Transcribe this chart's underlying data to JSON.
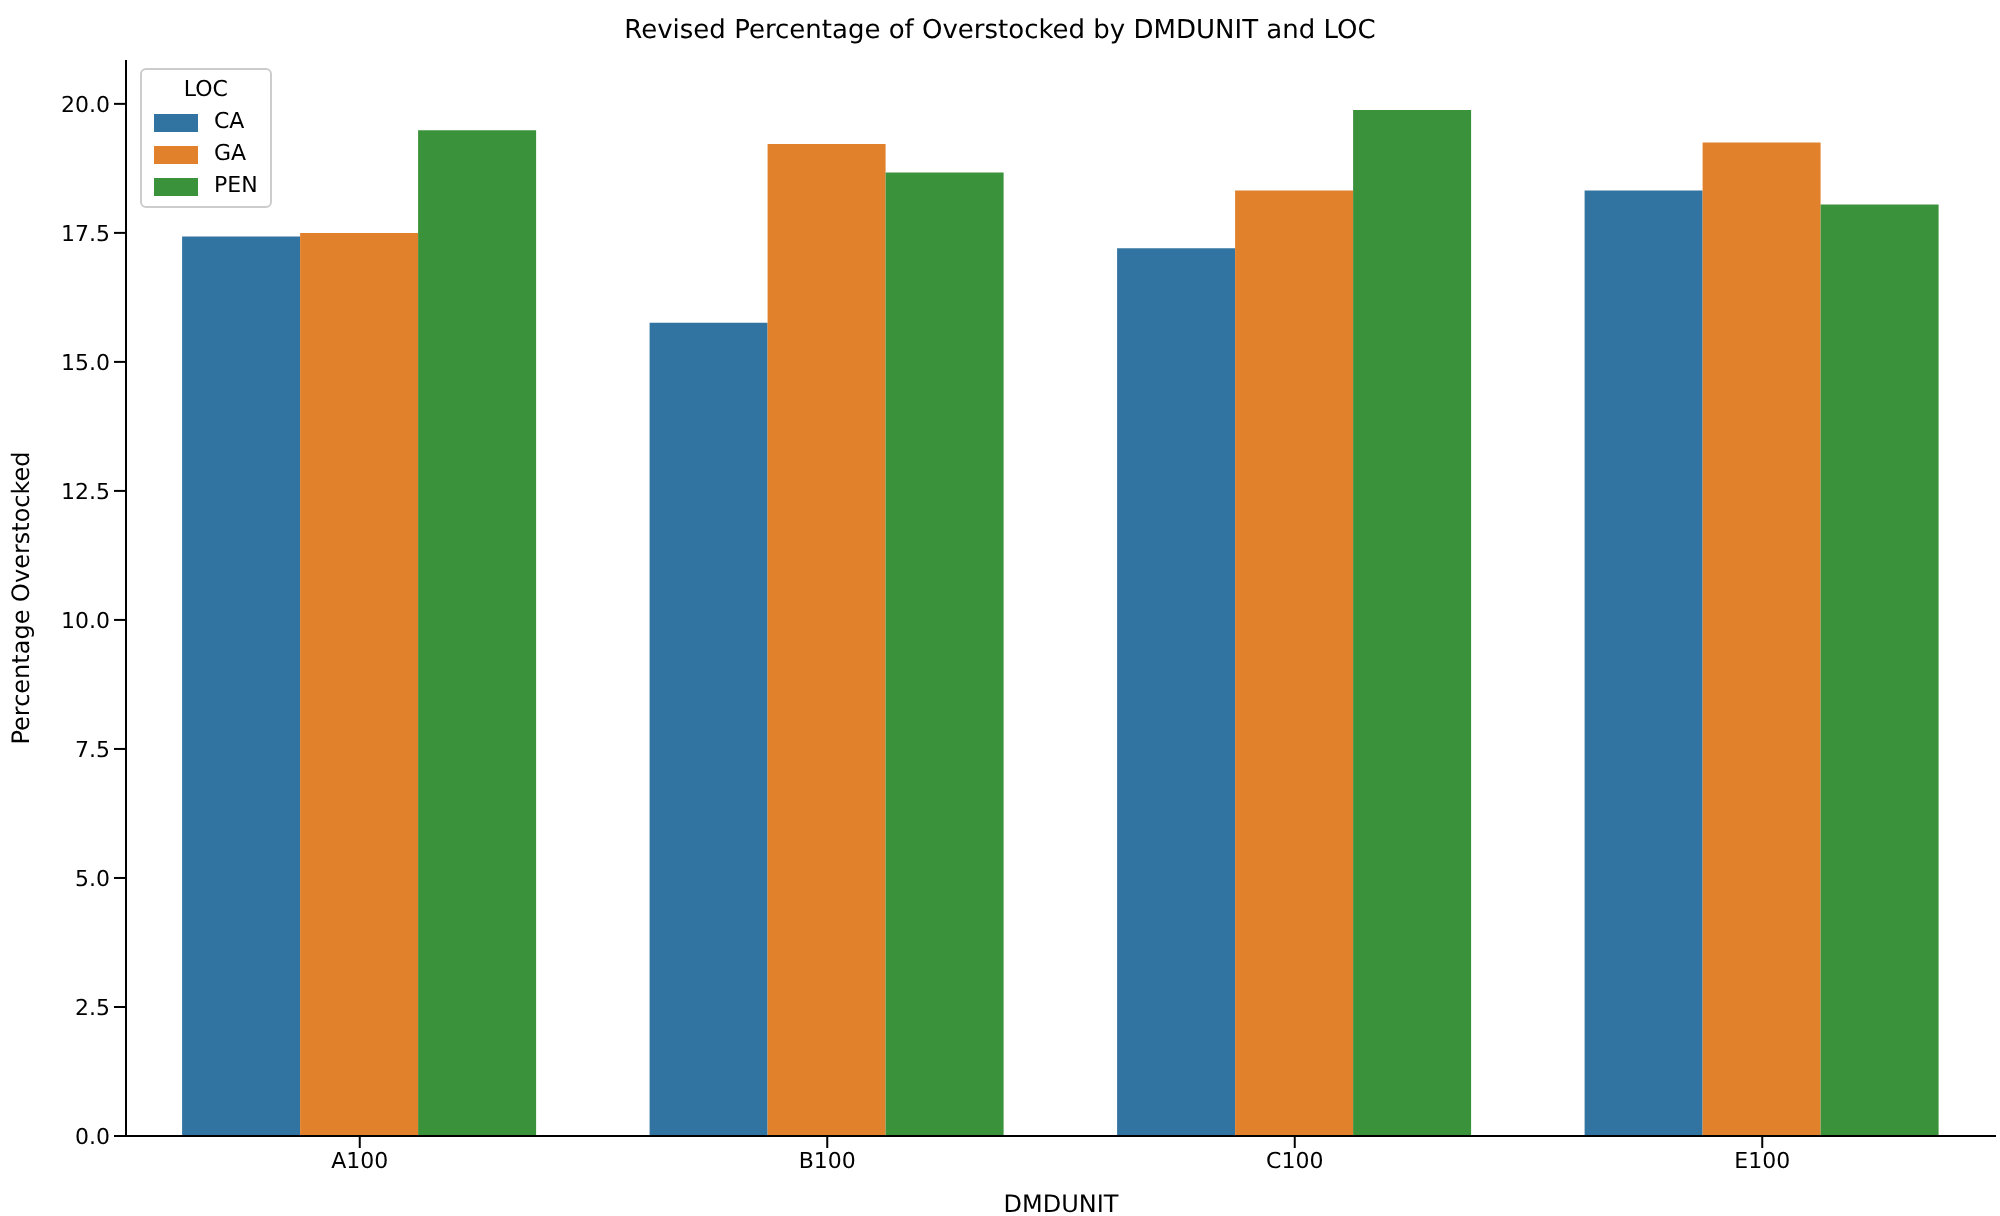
{
  "chart_data": {
    "type": "bar",
    "title": "Revised Percentage of Overstocked by DMDUNIT and LOC",
    "xlabel": "DMDUNIT",
    "ylabel": "Percentage Overstocked",
    "legend_title": "LOC",
    "categories": [
      "A100",
      "B100",
      "C100",
      "E100"
    ],
    "series": [
      {
        "name": "CA",
        "color": "#3274a1",
        "values": [
          17.43,
          15.76,
          17.2,
          18.32
        ]
      },
      {
        "name": "GA",
        "color": "#e1812c",
        "values": [
          17.5,
          19.22,
          18.32,
          19.25
        ]
      },
      {
        "name": "PEN",
        "color": "#3a923a",
        "values": [
          19.49,
          18.67,
          19.88,
          18.05
        ]
      }
    ],
    "ylim": [
      0,
      20.85
    ],
    "yticks": [
      {
        "value": 0,
        "label": "0.0"
      },
      {
        "value": 2.5,
        "label": "2.5"
      },
      {
        "value": 5,
        "label": "5.0"
      },
      {
        "value": 7.5,
        "label": "7.5"
      },
      {
        "value": 10,
        "label": "10.0"
      },
      {
        "value": 12.5,
        "label": "12.5"
      },
      {
        "value": 15,
        "label": "15.0"
      },
      {
        "value": 17.5,
        "label": "17.5"
      },
      {
        "value": 20,
        "label": "20.0"
      }
    ],
    "legend": "top left",
    "grid": false
  }
}
